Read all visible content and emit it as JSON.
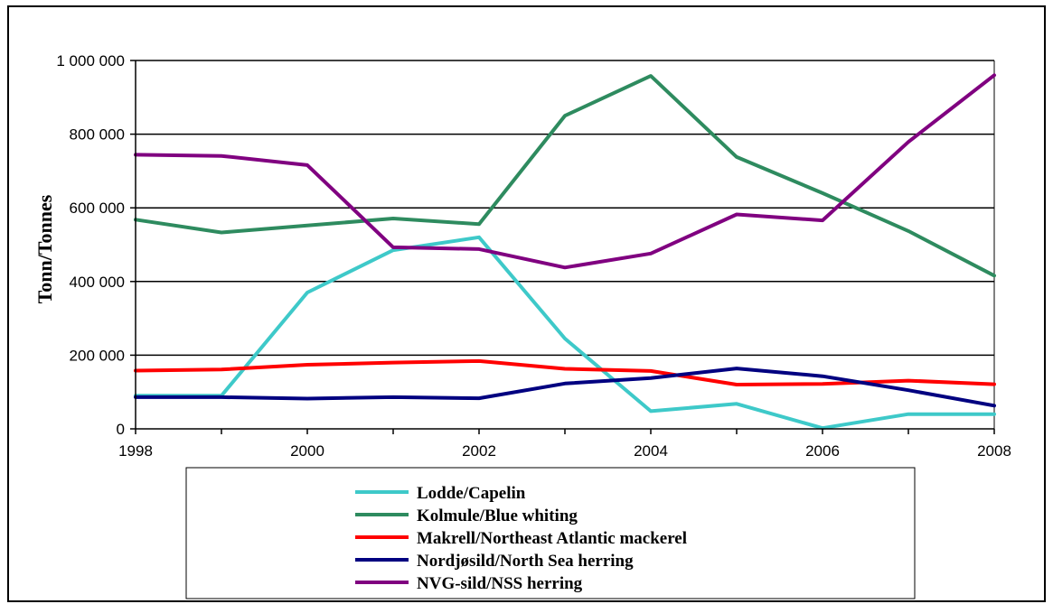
{
  "chart_data": {
    "type": "line",
    "title": "",
    "xlabel": "",
    "ylabel": "Tonn/Tonnes",
    "x": [
      1998,
      1999,
      2000,
      2001,
      2002,
      2003,
      2004,
      2005,
      2006,
      2007,
      2008
    ],
    "xticks": [
      "1998",
      "2000",
      "2002",
      "2004",
      "2006",
      "2008"
    ],
    "xlim": [
      1998,
      2008
    ],
    "yticks": [
      "0",
      "200 000",
      "400 000",
      "600 000",
      "800 000",
      "1 000 000"
    ],
    "ylim": [
      0,
      1000000
    ],
    "grid": "horizontal",
    "legend_position": "bottom",
    "series": [
      {
        "name": "Lodde/Capelin",
        "color": "#3ec9c9",
        "values": [
          90000,
          90000,
          370000,
          485000,
          520000,
          245000,
          48000,
          68000,
          2000,
          40000,
          40000
        ]
      },
      {
        "name": "Kolmule/Blue whiting",
        "color": "#2e8b5f",
        "values": [
          568000,
          533000,
          552000,
          571000,
          556000,
          850000,
          958000,
          738000,
          640000,
          537000,
          416000
        ]
      },
      {
        "name": "Makrell/Northeast Atlantic mackerel",
        "color": "#ff0000",
        "values": [
          158000,
          161000,
          174000,
          180000,
          184000,
          163000,
          157000,
          120000,
          122000,
          131000,
          121000
        ]
      },
      {
        "name": "Nordjøsild/North Sea herring",
        "color": "#000080",
        "values": [
          86000,
          86000,
          82000,
          86000,
          83000,
          123000,
          138000,
          164000,
          143000,
          105000,
          63000
        ]
      },
      {
        "name": "NVG-sild/NSS herring",
        "color": "#800080",
        "values": [
          744000,
          741000,
          716000,
          493000,
          488000,
          438000,
          476000,
          582000,
          566000,
          779000,
          960000
        ]
      }
    ]
  }
}
